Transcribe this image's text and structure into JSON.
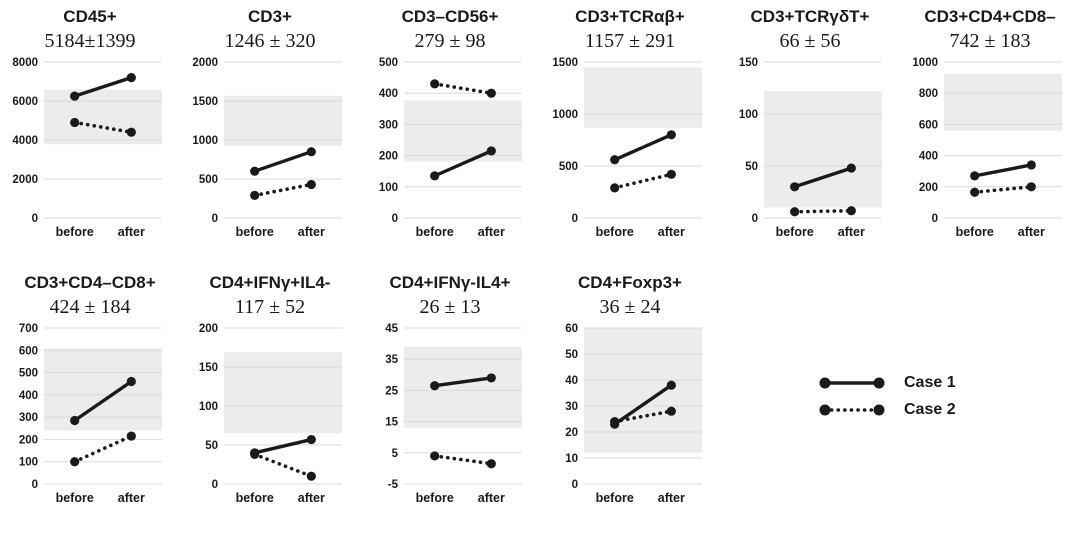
{
  "figure": {
    "background": "#ffffff",
    "line_color": "#1a1a1a",
    "band_color": "#ececec",
    "grid_color": "#d9d9d9"
  },
  "legend": {
    "items": [
      {
        "label": "Case 1",
        "style": "solid"
      },
      {
        "label": "Case 2",
        "style": "dotted"
      }
    ]
  },
  "chart_data": {
    "type": "line",
    "subtype": "paired-slope-charts",
    "x_categories": [
      "before",
      "after"
    ],
    "series_names": [
      "Case 1",
      "Case 2"
    ],
    "shaded_band": "mean ± SD reference range",
    "grid": true,
    "legend_position": "bottom-right",
    "panels": [
      {
        "row": 1,
        "name": "CD45+",
        "stat": "5184±1399",
        "mean": 5184,
        "sd": 1399,
        "ylim": [
          0,
          8000
        ],
        "ystep": 2000,
        "case1": [
          6250,
          7200
        ],
        "case2": [
          4900,
          4400
        ]
      },
      {
        "row": 1,
        "name": "CD3+",
        "stat": "1246 ± 320",
        "mean": 1246,
        "sd": 320,
        "ylim": [
          0,
          2000
        ],
        "ystep": 500,
        "case1": [
          600,
          850
        ],
        "case2": [
          290,
          430
        ]
      },
      {
        "row": 1,
        "name": "CD3–CD56+",
        "stat": "279 ± 98",
        "mean": 279,
        "sd": 98,
        "ylim": [
          0,
          500
        ],
        "ystep": 100,
        "case1": [
          135,
          215
        ],
        "case2": [
          430,
          400
        ]
      },
      {
        "row": 1,
        "name": "CD3+TCRαβ+",
        "stat": "1157 ± 291",
        "mean": 1157,
        "sd": 291,
        "ylim": [
          0,
          1500
        ],
        "ystep": 500,
        "case1": [
          560,
          800
        ],
        "case2": [
          290,
          420
        ]
      },
      {
        "row": 1,
        "name": "CD3+TCRγδT+",
        "stat": "66 ± 56",
        "mean": 66,
        "sd": 56,
        "ylim": [
          0,
          150
        ],
        "ystep": 50,
        "case1": [
          30,
          48
        ],
        "case2": [
          6,
          7
        ]
      },
      {
        "row": 1,
        "name": "CD3+CD4+CD8–",
        "stat": "742 ± 183",
        "mean": 742,
        "sd": 183,
        "ylim": [
          0,
          1000
        ],
        "ystep": 200,
        "case1": [
          270,
          340
        ],
        "case2": [
          165,
          200
        ]
      },
      {
        "row": 2,
        "name": "CD3+CD4–CD8+",
        "stat": "424 ± 184",
        "mean": 424,
        "sd": 184,
        "ylim": [
          0,
          700
        ],
        "ystep": 100,
        "case1": [
          285,
          460
        ],
        "case2": [
          100,
          215
        ]
      },
      {
        "row": 2,
        "name": "CD4+IFNγ+IL4-",
        "stat": "117 ± 52",
        "mean": 117,
        "sd": 52,
        "ylim": [
          0,
          200
        ],
        "ystep": 50,
        "case1": [
          40,
          57
        ],
        "case2": [
          38,
          10
        ]
      },
      {
        "row": 2,
        "name": "CD4+IFNγ-IL4+",
        "stat": "26 ± 13",
        "mean": 26,
        "sd": 13,
        "ylim": [
          -5,
          45
        ],
        "ystep": 10,
        "case1": [
          26.5,
          29
        ],
        "case2": [
          4,
          1.5
        ]
      },
      {
        "row": 2,
        "name": "CD4+Foxp3+",
        "stat": "36 ± 24",
        "mean": 36,
        "sd": 24,
        "ylim": [
          0,
          60
        ],
        "ystep": 10,
        "case1": [
          23,
          38
        ],
        "case2": [
          24,
          28
        ]
      }
    ]
  }
}
